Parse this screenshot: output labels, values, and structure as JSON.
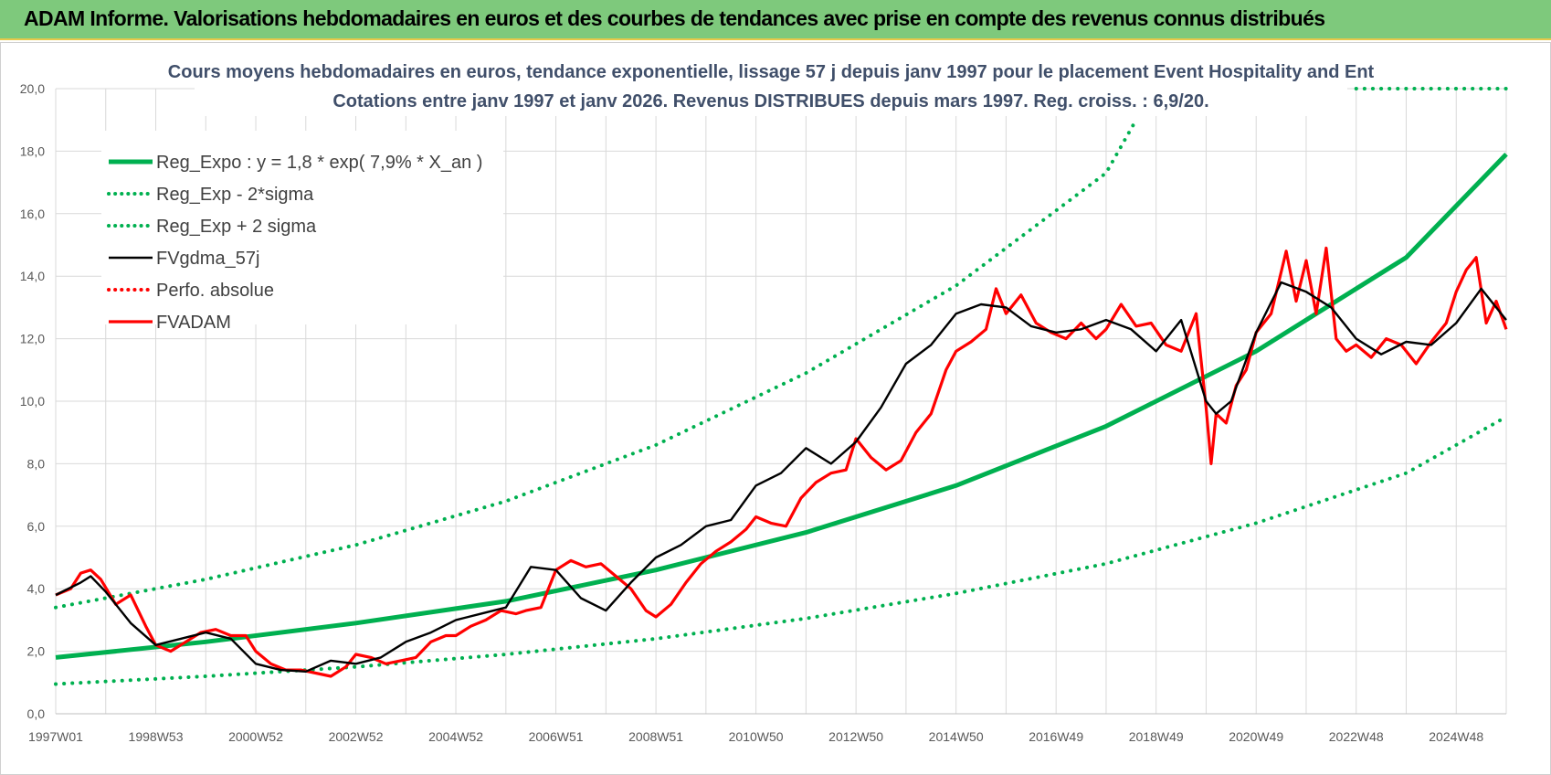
{
  "header": {
    "title": "ADAM Informe. Valorisations hebdomadaires en euros et des courbes de tendances avec prise en compte des revenus connus distribués"
  },
  "colors": {
    "banner": "#7ec97c",
    "trend": "#00b050",
    "smoothed": "#000000",
    "price": "#ff0000"
  },
  "chart_data": {
    "type": "line",
    "title": "Cours moyens hebdomadaires en euros, tendance exponentielle, lissage 57 j depuis janv 1997  pour le placement Event Hospitality and Ent",
    "subtitle": "Cotations entre janv 1997 et janv 2026. Revenus DISTRIBUES depuis mars 1997.  Reg. croiss. : 6,9/20.",
    "xlabel": "",
    "ylabel": "",
    "xlim": [
      1997.0,
      2026.0
    ],
    "ylim": [
      0,
      20
    ],
    "y_ticks": [
      "0,0",
      "2,0",
      "4,0",
      "6,0",
      "8,0",
      "10,0",
      "12,0",
      "14,0",
      "16,0",
      "18,0",
      "20,0"
    ],
    "x_ticks": [
      {
        "label": "1997W01",
        "x": 1997.0
      },
      {
        "label": "1998W53",
        "x": 1999.0
      },
      {
        "label": "2000W52",
        "x": 2001.0
      },
      {
        "label": "2002W52",
        "x": 2003.0
      },
      {
        "label": "2004W52",
        "x": 2005.0
      },
      {
        "label": "2006W51",
        "x": 2007.0
      },
      {
        "label": "2008W51",
        "x": 2009.0
      },
      {
        "label": "2010W50",
        "x": 2011.0
      },
      {
        "label": "2012W50",
        "x": 2013.0
      },
      {
        "label": "2014W50",
        "x": 2015.0
      },
      {
        "label": "2016W49",
        "x": 2017.0
      },
      {
        "label": "2018W49",
        "x": 2019.0
      },
      {
        "label": "2020W49",
        "x": 2021.0
      },
      {
        "label": "2022W48",
        "x": 2023.0
      },
      {
        "label": "2024W48",
        "x": 2025.0
      }
    ],
    "legend_position": "top-left",
    "series": [
      {
        "name": "Reg_Expo : y = 1,8 * exp( 7,9% *  X_an )",
        "style": "solid-thick",
        "color": "#00b050",
        "x": [
          1997.0,
          2000.0,
          2003.0,
          2006.0,
          2009.0,
          2012.0,
          2015.0,
          2018.0,
          2021.0,
          2024.0,
          2026.0
        ],
        "y": [
          1.8,
          2.3,
          2.9,
          3.6,
          4.6,
          5.8,
          7.3,
          9.2,
          11.6,
          14.6,
          17.9
        ]
      },
      {
        "name": "Reg_Exp - 2*sigma",
        "style": "dotted",
        "color": "#00b050",
        "x": [
          1997.0,
          2000.0,
          2003.0,
          2006.0,
          2009.0,
          2012.0,
          2015.0,
          2018.0,
          2021.0,
          2024.0,
          2026.0
        ],
        "y": [
          0.95,
          1.2,
          1.5,
          1.9,
          2.4,
          3.05,
          3.85,
          4.8,
          6.1,
          7.7,
          9.5
        ]
      },
      {
        "name": "Reg_Exp + 2 sigma",
        "style": "dotted",
        "color": "#00b050",
        "x": [
          1997.0,
          2000.0,
          2003.0,
          2006.0,
          2009.0,
          2012.0,
          2015.0,
          2018.0,
          2018.6
        ],
        "y": [
          3.4,
          4.3,
          5.4,
          6.8,
          8.6,
          10.9,
          13.7,
          17.3,
          19.0
        ]
      },
      {
        "name": "FVgdma_57j",
        "style": "solid",
        "color": "#000000",
        "x": [
          1997.0,
          1997.5,
          1997.7,
          1998.0,
          1998.5,
          1999.0,
          1999.5,
          2000.0,
          2000.5,
          2001.0,
          2001.5,
          2002.0,
          2002.5,
          2003.0,
          2003.5,
          2004.0,
          2004.5,
          2005.0,
          2005.5,
          2006.0,
          2006.5,
          2007.0,
          2007.5,
          2008.0,
          2008.5,
          2009.0,
          2009.5,
          2010.0,
          2010.5,
          2011.0,
          2011.5,
          2012.0,
          2012.5,
          2013.0,
          2013.5,
          2014.0,
          2014.5,
          2015.0,
          2015.5,
          2016.0,
          2016.5,
          2017.0,
          2017.5,
          2018.0,
          2018.5,
          2019.0,
          2019.5,
          2020.0,
          2020.2,
          2020.5,
          2021.0,
          2021.5,
          2022.0,
          2022.5,
          2023.0,
          2023.5,
          2024.0,
          2024.5,
          2025.0,
          2025.5,
          2026.0
        ],
        "y": [
          3.8,
          4.2,
          4.4,
          3.9,
          2.9,
          2.2,
          2.4,
          2.6,
          2.4,
          1.6,
          1.4,
          1.35,
          1.7,
          1.6,
          1.8,
          2.3,
          2.6,
          3.0,
          3.2,
          3.4,
          4.7,
          4.6,
          3.7,
          3.3,
          4.2,
          5.0,
          5.4,
          6.0,
          6.2,
          7.3,
          7.7,
          8.5,
          8.0,
          8.7,
          9.8,
          11.2,
          11.8,
          12.8,
          13.1,
          13.0,
          12.4,
          12.2,
          12.3,
          12.6,
          12.3,
          11.6,
          12.6,
          10.0,
          9.6,
          10.0,
          12.2,
          13.8,
          13.5,
          13.0,
          12.0,
          11.5,
          11.9,
          11.8,
          12.5,
          13.6,
          12.6
        ]
      },
      {
        "name": "Perfo. absolue",
        "style": "dotted",
        "color": "#ff0000",
        "x": [],
        "y": []
      },
      {
        "name": "FVADAM",
        "style": "solid-thick",
        "color": "#ff0000",
        "x": [
          1997.0,
          1997.3,
          1997.5,
          1997.7,
          1997.9,
          1998.2,
          1998.5,
          1998.8,
          1999.0,
          1999.3,
          1999.6,
          1999.9,
          2000.2,
          2000.5,
          2000.8,
          2001.0,
          2001.3,
          2001.6,
          2001.9,
          2002.2,
          2002.5,
          2002.8,
          2003.0,
          2003.3,
          2003.6,
          2003.9,
          2004.2,
          2004.5,
          2004.8,
          2005.0,
          2005.3,
          2005.6,
          2005.9,
          2006.2,
          2006.4,
          2006.7,
          2007.0,
          2007.3,
          2007.6,
          2007.9,
          2008.2,
          2008.5,
          2008.8,
          2009.0,
          2009.3,
          2009.6,
          2009.9,
          2010.2,
          2010.5,
          2010.8,
          2011.0,
          2011.3,
          2011.6,
          2011.9,
          2012.2,
          2012.5,
          2012.8,
          2013.0,
          2013.3,
          2013.6,
          2013.9,
          2014.2,
          2014.5,
          2014.8,
          2015.0,
          2015.3,
          2015.6,
          2015.8,
          2016.0,
          2016.3,
          2016.6,
          2016.9,
          2017.2,
          2017.5,
          2017.8,
          2018.0,
          2018.3,
          2018.6,
          2018.9,
          2019.2,
          2019.5,
          2019.8,
          2020.0,
          2020.1,
          2020.2,
          2020.4,
          2020.6,
          2020.8,
          2021.0,
          2021.3,
          2021.6,
          2021.8,
          2022.0,
          2022.2,
          2022.4,
          2022.6,
          2022.8,
          2023.0,
          2023.3,
          2023.6,
          2023.9,
          2024.2,
          2024.5,
          2024.8,
          2025.0,
          2025.2,
          2025.4,
          2025.6,
          2025.8,
          2026.0
        ],
        "y": [
          3.8,
          4.0,
          4.5,
          4.6,
          4.3,
          3.5,
          3.8,
          2.8,
          2.2,
          2.0,
          2.3,
          2.6,
          2.7,
          2.5,
          2.5,
          2.0,
          1.6,
          1.4,
          1.4,
          1.3,
          1.2,
          1.5,
          1.9,
          1.8,
          1.6,
          1.7,
          1.8,
          2.3,
          2.5,
          2.5,
          2.8,
          3.0,
          3.3,
          3.2,
          3.3,
          3.4,
          4.6,
          4.9,
          4.7,
          4.8,
          4.4,
          4.0,
          3.3,
          3.1,
          3.5,
          4.2,
          4.8,
          5.2,
          5.5,
          5.9,
          6.3,
          6.1,
          6.0,
          6.9,
          7.4,
          7.7,
          7.8,
          8.8,
          8.2,
          7.8,
          8.1,
          9.0,
          9.6,
          11.0,
          11.6,
          11.9,
          12.3,
          13.6,
          12.8,
          13.4,
          12.5,
          12.2,
          12.0,
          12.5,
          12.0,
          12.3,
          13.1,
          12.4,
          12.5,
          11.8,
          11.6,
          12.8,
          9.8,
          8.0,
          9.6,
          9.3,
          10.5,
          11.0,
          12.2,
          12.8,
          14.8,
          13.2,
          14.5,
          12.8,
          14.9,
          12.0,
          11.6,
          11.8,
          11.4,
          12.0,
          11.8,
          11.2,
          11.9,
          12.5,
          13.5,
          14.2,
          14.6,
          12.5,
          13.2,
          12.3
        ]
      }
    ]
  }
}
